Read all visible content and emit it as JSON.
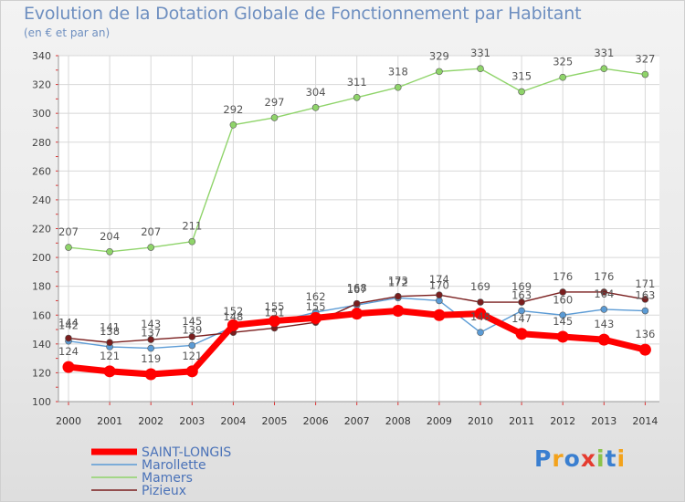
{
  "chart_data": {
    "type": "line",
    "title": "Evolution de la Dotation Globale de Fonctionnement par Habitant",
    "subtitle": "(en € et par an)",
    "x": [
      "2000",
      "2001",
      "2002",
      "2003",
      "2004",
      "2005",
      "2006",
      "2007",
      "2008",
      "2009",
      "2010",
      "2011",
      "2012",
      "2013",
      "2014"
    ],
    "ylim": [
      100,
      340
    ],
    "yticks": [
      "100",
      "120",
      "140",
      "160",
      "180",
      "200",
      "220",
      "240",
      "260",
      "280",
      "300",
      "320",
      "340"
    ],
    "series": [
      {
        "name": "SAINT-LONGIS",
        "color": "#ff0000",
        "values": [
          124,
          121,
          119,
          121,
          153,
          156,
          158,
          161,
          163,
          160,
          161,
          147,
          145,
          143,
          136
        ],
        "labels": [
          "124",
          "121",
          "119",
          "121",
          "",
          "",
          "",
          "",
          "",
          "",
          "",
          "147",
          "145",
          "143",
          "136"
        ]
      },
      {
        "name": "Marollette",
        "color": "#5b9bd5",
        "values": [
          142,
          138,
          137,
          139,
          152,
          155,
          162,
          167,
          172,
          170,
          148,
          163,
          160,
          164,
          163
        ],
        "labels": [
          "142",
          "138",
          "137",
          "139",
          "152",
          "155",
          "162",
          "167",
          "172",
          "170",
          "148",
          "163",
          "160",
          "164",
          "163"
        ]
      },
      {
        "name": "Mamers",
        "color": "#8fd46a",
        "values": [
          207,
          204,
          207,
          211,
          292,
          297,
          304,
          311,
          318,
          329,
          331,
          315,
          325,
          331,
          327
        ],
        "labels": [
          "207",
          "204",
          "207",
          "211",
          "292",
          "297",
          "304",
          "311",
          "318",
          "329",
          "331",
          "315",
          "325",
          "331",
          "327"
        ]
      },
      {
        "name": "Pizieux",
        "color": "#7a1e1e",
        "values": [
          144,
          141,
          143,
          145,
          148,
          151,
          155,
          168,
          173,
          174,
          169,
          169,
          176,
          176,
          171
        ],
        "labels": [
          "144",
          "141",
          "143",
          "145",
          "148",
          "151",
          "155",
          "168",
          "173",
          "174",
          "169",
          "169",
          "176",
          "176",
          "171"
        ]
      }
    ],
    "legend": [
      "SAINT-LONGIS",
      "Marollette",
      "Mamers",
      "Pizieux"
    ],
    "grid": true
  },
  "logo": {
    "letters": [
      "P",
      "r",
      "o",
      "x",
      "i",
      "t",
      "i"
    ],
    "colors": [
      "#3a7fd0",
      "#f3a21b",
      "#3a7fd0",
      "#e53b2f",
      "#8bc34a",
      "#3a7fd0",
      "#f3a21b"
    ]
  }
}
